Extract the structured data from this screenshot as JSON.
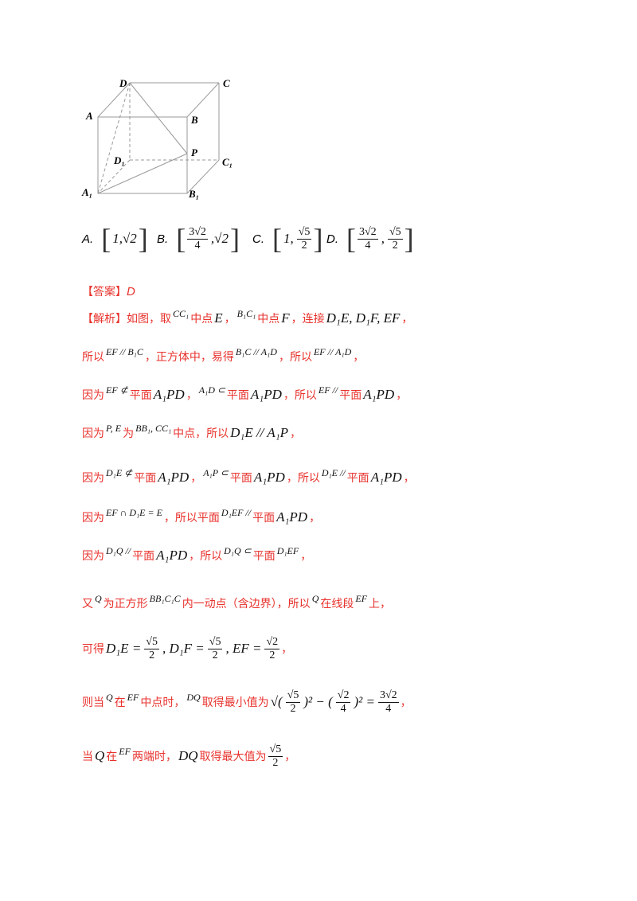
{
  "figure": {
    "labels": [
      "D",
      "C",
      "A",
      "B",
      "P",
      "D₁",
      "C₁",
      "A₁",
      "B₁"
    ]
  },
  "options": [
    [
      {
        "opt": "A."
      },
      {
        "big": "["
      },
      {
        "math": "1,√2"
      },
      {
        "big": "]"
      }
    ],
    [
      {
        "opt": "B."
      },
      {
        "big": "["
      },
      {
        "frac": [
          "3√2",
          "4"
        ]
      },
      {
        "math": ",√2"
      },
      {
        "big": "]"
      }
    ],
    [
      {
        "opt": "C."
      },
      {
        "big": "["
      },
      {
        "math": "1,"
      },
      {
        "frac": [
          "√5",
          "2"
        ]
      },
      {
        "big": "]"
      }
    ],
    [
      {
        "opt": "D."
      },
      {
        "big": "["
      },
      {
        "frac": [
          "3√2",
          "4"
        ]
      },
      {
        "math": ","
      },
      {
        "frac": [
          "√5",
          "2"
        ]
      },
      {
        "big": "]"
      }
    ]
  ],
  "lines": [
    [
      {
        "red": "【答案】"
      },
      {
        "redmath": "D"
      }
    ],
    [
      {
        "red": "【解析】如图，取"
      },
      {
        "small": "CC₁"
      },
      {
        "red": "中点"
      },
      {
        "math": "E"
      },
      {
        "red": "，"
      },
      {
        "small": "B₁C₁"
      },
      {
        "red": "中点"
      },
      {
        "math": "F"
      },
      {
        "red": "，连接"
      },
      {
        "math": "D₁E, D₁F, EF"
      },
      {
        "red": "，"
      }
    ],
    [
      {
        "red": "所以"
      },
      {
        "small": "EF // B₁C"
      },
      {
        "red": "，正方体中，易得"
      },
      {
        "small": "B₁C // A₁D"
      },
      {
        "red": "，所以"
      },
      {
        "small": "EF // A₁D"
      },
      {
        "red": "，"
      }
    ],
    [
      {
        "red": "因为"
      },
      {
        "small": "EF ⊄"
      },
      {
        "red": "平面"
      },
      {
        "math": "A₁PD"
      },
      {
        "red": "，"
      },
      {
        "small": "A₁D ⊂"
      },
      {
        "red": "平面"
      },
      {
        "math": "A₁PD"
      },
      {
        "red": "，所以"
      },
      {
        "small": "EF //"
      },
      {
        "red": "平面"
      },
      {
        "math": "A₁PD"
      },
      {
        "red": "，"
      }
    ],
    [
      {
        "red": "因为"
      },
      {
        "small": "P, E"
      },
      {
        "red": "为"
      },
      {
        "small": "BB₁, CC₁"
      },
      {
        "red": "中点，所以"
      },
      {
        "math": "D₁E // A₁P"
      },
      {
        "red": "，"
      }
    ],
    [
      {
        "red": "因为"
      },
      {
        "small": "D₁E ⊄"
      },
      {
        "red": "平面"
      },
      {
        "math": "A₁PD"
      },
      {
        "red": "，"
      },
      {
        "small": "A₁P ⊂"
      },
      {
        "red": "平面"
      },
      {
        "math": "A₁PD"
      },
      {
        "red": "，所以"
      },
      {
        "small": "D₁E //"
      },
      {
        "red": "平面"
      },
      {
        "math": "A₁PD"
      },
      {
        "red": "，"
      }
    ],
    [
      {
        "red": "因为"
      },
      {
        "small": "EF ∩ D₁E = E"
      },
      {
        "red": "，所以平面"
      },
      {
        "small": "D₁EF //"
      },
      {
        "red": "平面"
      },
      {
        "math": "A₁PD"
      },
      {
        "red": "，"
      }
    ],
    [
      {
        "red": "因为"
      },
      {
        "small": "D₁Q //"
      },
      {
        "red": "平面"
      },
      {
        "math": "A₁PD"
      },
      {
        "red": "，所以"
      },
      {
        "small": "D₁Q ⊂"
      },
      {
        "red": "平面"
      },
      {
        "small": "D₁EF"
      },
      {
        "red": "，"
      }
    ],
    [
      {
        "red": "又"
      },
      {
        "small": "Q"
      },
      {
        "red": "为正方形"
      },
      {
        "small": "BB₁C₁C"
      },
      {
        "red": "内一动点（含边界），所以"
      },
      {
        "small": "Q"
      },
      {
        "red": "在线段"
      },
      {
        "small": "EF"
      },
      {
        "red": "上，"
      }
    ],
    [
      {
        "red": "可得"
      },
      {
        "math": "D₁E ="
      },
      {
        "frac": [
          "√5",
          "2"
        ]
      },
      {
        "math": ", D₁F ="
      },
      {
        "frac": [
          "√5",
          "2"
        ]
      },
      {
        "math": ", EF ="
      },
      {
        "frac": [
          "√2",
          "2"
        ]
      },
      {
        "red": "，"
      }
    ],
    [
      {
        "red": "则当 "
      },
      {
        "small": "Q"
      },
      {
        "red": " 在 "
      },
      {
        "small": "EF"
      },
      {
        "red": " 中点时， "
      },
      {
        "small": "DQ"
      },
      {
        "red": " 取得最小值为"
      },
      {
        "math": "√("
      },
      {
        "frac": [
          "√5",
          "2"
        ]
      },
      {
        "math": ")² − ("
      },
      {
        "frac": [
          "√2",
          "4"
        ]
      },
      {
        "math": ")² ="
      },
      {
        "frac": [
          "3√2",
          "4"
        ]
      },
      {
        "red": "，"
      }
    ],
    [
      {
        "red": "当"
      },
      {
        "math": "Q"
      },
      {
        "red": "在"
      },
      {
        "small": "EF"
      },
      {
        "red": "两端时，"
      },
      {
        "math": "DQ"
      },
      {
        "red": "取得最大值为"
      },
      {
        "frac": [
          "√5",
          "2"
        ]
      },
      {
        "red": "，"
      }
    ]
  ]
}
